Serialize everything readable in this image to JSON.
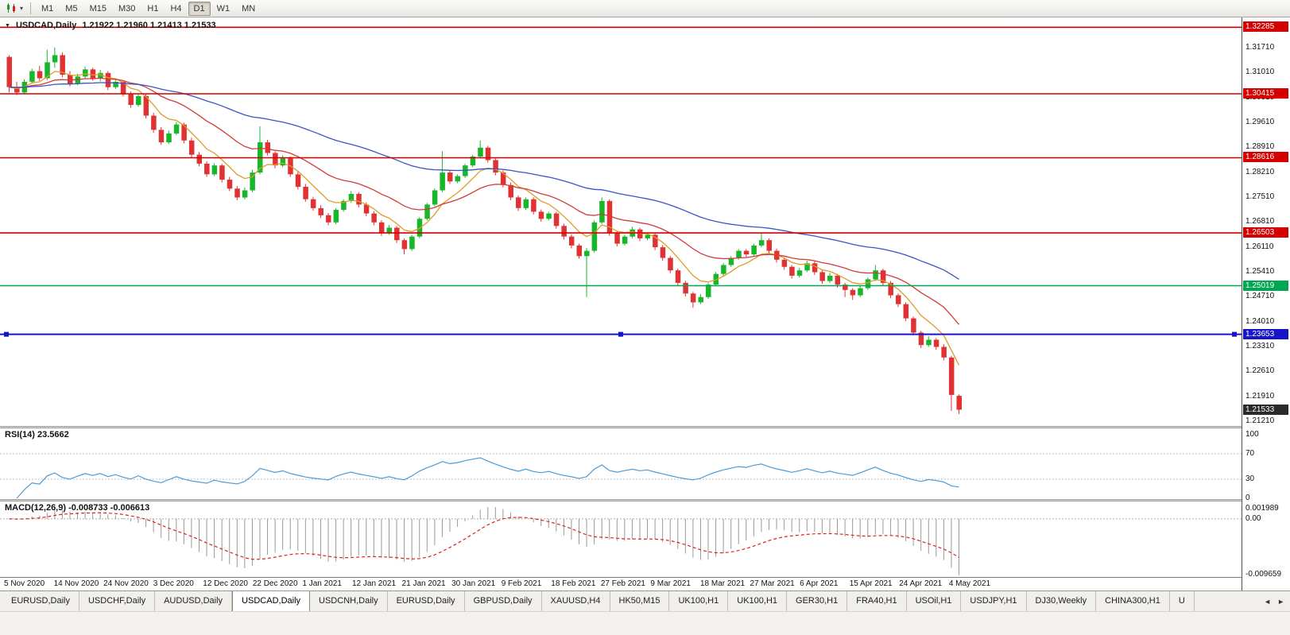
{
  "toolbar": {
    "timeframes": [
      "M1",
      "M5",
      "M15",
      "M30",
      "H1",
      "H4",
      "D1",
      "W1",
      "MN"
    ],
    "active_timeframe": "D1",
    "chart_icon_caret": "▾"
  },
  "chart": {
    "header_symbol": "USDCAD,Daily",
    "header_ohlc": "1.21922 1.21960 1.21413 1.21533",
    "collapse_icon": "▼",
    "price_axis_labels": [
      "1.31710",
      "1.31010",
      "1.30310",
      "1.29610",
      "1.28910",
      "1.28210",
      "1.27510",
      "1.26810",
      "1.26110",
      "1.25410",
      "1.24710",
      "1.24010",
      "1.23310",
      "1.22610",
      "1.21910",
      "1.21210"
    ],
    "level_lines": [
      {
        "price": 1.32285,
        "label": "1.32285",
        "color": "#d40000"
      },
      {
        "price": 1.30415,
        "label": "1.30415",
        "color": "#d40000"
      },
      {
        "price": 1.28616,
        "label": "1.28616",
        "color": "#d40000"
      },
      {
        "price": 1.26503,
        "label": "1.26503",
        "color": "#d40000"
      },
      {
        "price": 1.25019,
        "label": "1.25019",
        "color": "#00a651"
      },
      {
        "price": 1.23653,
        "label": "1.23653",
        "color": "#1616c8",
        "selected": true
      }
    ],
    "current_price": {
      "value": 1.21533,
      "label": "1.21533",
      "color": "#2a2a2a"
    }
  },
  "rsi": {
    "label": "RSI(14) 23.5662",
    "value": 23.5662,
    "period": 14,
    "axis_labels": [
      "100",
      "70",
      "30",
      "0"
    ],
    "level_lines": [
      70,
      30
    ],
    "line_color": "#4f9bd5"
  },
  "macd": {
    "label": "MACD(12,26,9) -0.008733 -0.006613",
    "macd_value": -0.008733,
    "signal_value": -0.006613,
    "axis_labels": [
      "0.001989",
      "0.00",
      "-0.009659"
    ],
    "histogram_color": "#9a9a9a",
    "signal_color": "#e02020"
  },
  "tabs": {
    "active_index": 3,
    "scroll_left_icon": "◄",
    "scroll_right_icon": "►",
    "items": [
      "EURUSD,Daily",
      "USDCHF,Daily",
      "AUDUSD,Daily",
      "USDCAD,Daily",
      "USDCNH,Daily",
      "EURUSD,Daily",
      "GBPUSD,Daily",
      "XAUUSD,H4",
      "HK50,M15",
      "UK100,H1",
      "UK100,H1",
      "GER30,H1",
      "FRA40,H1",
      "USOil,H1",
      "USDJPY,H1",
      "DJ30,Weekly",
      "CHINA300,H1",
      "U"
    ]
  },
  "chart_data": {
    "type": "candlestick",
    "symbol": "USDCAD",
    "timeframe": "Daily",
    "title": "USDCAD,Daily",
    "y_range": [
      1.2105,
      1.3243
    ],
    "colors": {
      "up": "#17b72a",
      "down": "#e03232"
    },
    "x_labels": [
      "5 Nov 2020",
      "14 Nov 2020",
      "24 Nov 2020",
      "3 Dec 2020",
      "12 Dec 2020",
      "22 Dec 2020",
      "1 Jan 2021",
      "12 Jan 2021",
      "21 Jan 2021",
      "30 Jan 2021",
      "9 Feb 2021",
      "18 Feb 2021",
      "27 Feb 2021",
      "9 Mar 2021",
      "18 Mar 2021",
      "27 Mar 2021",
      "6 Apr 2021",
      "15 Apr 2021",
      "24 Apr 2021",
      "4 May 2021"
    ],
    "candles": [
      [
        1.3145,
        1.315,
        1.3045,
        1.306
      ],
      [
        1.306,
        1.3075,
        1.3038,
        1.3045
      ],
      [
        1.3045,
        1.3082,
        1.304,
        1.3075
      ],
      [
        1.3075,
        1.3112,
        1.307,
        1.3105
      ],
      [
        1.3105,
        1.312,
        1.3078,
        1.3085
      ],
      [
        1.3085,
        1.3165,
        1.308,
        1.313
      ],
      [
        1.313,
        1.3172,
        1.3115,
        1.315
      ],
      [
        1.315,
        1.3158,
        1.3088,
        1.3095
      ],
      [
        1.3095,
        1.3105,
        1.3062,
        1.307
      ],
      [
        1.307,
        1.3098,
        1.3065,
        1.309
      ],
      [
        1.309,
        1.3118,
        1.3085,
        1.311
      ],
      [
        1.311,
        1.3115,
        1.3078,
        1.3085
      ],
      [
        1.3085,
        1.3108,
        1.3076,
        1.31
      ],
      [
        1.31,
        1.3105,
        1.3052,
        1.306
      ],
      [
        1.306,
        1.3082,
        1.3055,
        1.3075
      ],
      [
        1.3075,
        1.308,
        1.3034,
        1.304
      ],
      [
        1.304,
        1.3048,
        1.3002,
        1.301
      ],
      [
        1.301,
        1.3042,
        1.3005,
        1.3035
      ],
      [
        1.3035,
        1.304,
        1.2972,
        1.298
      ],
      [
        1.298,
        1.2988,
        1.2932,
        1.294
      ],
      [
        1.294,
        1.2948,
        1.2898,
        1.2905
      ],
      [
        1.2905,
        1.2938,
        1.29,
        1.293
      ],
      [
        1.293,
        1.2962,
        1.2925,
        1.2955
      ],
      [
        1.2955,
        1.296,
        1.2902,
        1.291
      ],
      [
        1.291,
        1.2918,
        1.2862,
        1.287
      ],
      [
        1.287,
        1.2878,
        1.2838,
        1.2845
      ],
      [
        1.2845,
        1.2852,
        1.2808,
        1.2815
      ],
      [
        1.2815,
        1.2846,
        1.281,
        1.284
      ],
      [
        1.284,
        1.2845,
        1.2792,
        1.28
      ],
      [
        1.28,
        1.2808,
        1.2768,
        1.2775
      ],
      [
        1.2775,
        1.2782,
        1.2742,
        1.275
      ],
      [
        1.275,
        1.2778,
        1.2745,
        1.277
      ],
      [
        1.277,
        1.2828,
        1.2765,
        1.282
      ],
      [
        1.282,
        1.295,
        1.2815,
        1.2905
      ],
      [
        1.2905,
        1.2912,
        1.2868,
        1.2875
      ],
      [
        1.2875,
        1.288,
        1.2832,
        1.284
      ],
      [
        1.284,
        1.2868,
        1.2835,
        1.286
      ],
      [
        1.286,
        1.2865,
        1.2808,
        1.2815
      ],
      [
        1.2815,
        1.2822,
        1.2772,
        1.278
      ],
      [
        1.278,
        1.2788,
        1.2738,
        1.2745
      ],
      [
        1.2745,
        1.2752,
        1.2713,
        1.272
      ],
      [
        1.272,
        1.2728,
        1.2692,
        1.27
      ],
      [
        1.27,
        1.2706,
        1.2672,
        1.268
      ],
      [
        1.268,
        1.272,
        1.2675,
        1.2715
      ],
      [
        1.2715,
        1.2745,
        1.271,
        1.274
      ],
      [
        1.274,
        1.2768,
        1.2735,
        1.276
      ],
      [
        1.276,
        1.2765,
        1.2722,
        1.273
      ],
      [
        1.273,
        1.2736,
        1.2697,
        1.2705
      ],
      [
        1.2705,
        1.2712,
        1.2672,
        1.268
      ],
      [
        1.268,
        1.2686,
        1.2642,
        1.265
      ],
      [
        1.265,
        1.2672,
        1.2645,
        1.2665
      ],
      [
        1.2665,
        1.267,
        1.2622,
        1.263
      ],
      [
        1.263,
        1.2635,
        1.259,
        1.2605
      ],
      [
        1.2605,
        1.2645,
        1.26,
        1.264
      ],
      [
        1.264,
        1.2695,
        1.2635,
        1.269
      ],
      [
        1.269,
        1.2735,
        1.2685,
        1.273
      ],
      [
        1.273,
        1.2775,
        1.2725,
        1.277
      ],
      [
        1.277,
        1.288,
        1.2765,
        1.282
      ],
      [
        1.282,
        1.2825,
        1.2788,
        1.2795
      ],
      [
        1.2795,
        1.2815,
        1.279,
        1.281
      ],
      [
        1.281,
        1.2845,
        1.2805,
        1.284
      ],
      [
        1.284,
        1.287,
        1.2835,
        1.2865
      ],
      [
        1.2865,
        1.291,
        1.286,
        1.289
      ],
      [
        1.289,
        1.2895,
        1.2848,
        1.2855
      ],
      [
        1.2855,
        1.286,
        1.2812,
        1.282
      ],
      [
        1.282,
        1.2826,
        1.2778,
        1.2785
      ],
      [
        1.2785,
        1.2792,
        1.2742,
        1.275
      ],
      [
        1.275,
        1.2756,
        1.2712,
        1.272
      ],
      [
        1.272,
        1.275,
        1.2715,
        1.2745
      ],
      [
        1.2745,
        1.275,
        1.2702,
        1.271
      ],
      [
        1.271,
        1.2716,
        1.2682,
        1.269
      ],
      [
        1.269,
        1.271,
        1.2685,
        1.2705
      ],
      [
        1.2705,
        1.271,
        1.2662,
        1.267
      ],
      [
        1.267,
        1.2676,
        1.2632,
        1.264
      ],
      [
        1.264,
        1.2646,
        1.2607,
        1.2615
      ],
      [
        1.2615,
        1.262,
        1.2578,
        1.2585
      ],
      [
        1.2585,
        1.2608,
        1.247,
        1.26
      ],
      [
        1.26,
        1.2685,
        1.2595,
        1.268
      ],
      [
        1.268,
        1.275,
        1.2675,
        1.274
      ],
      [
        1.274,
        1.2745,
        1.2642,
        1.265
      ],
      [
        1.265,
        1.2656,
        1.2612,
        1.262
      ],
      [
        1.262,
        1.2645,
        1.2615,
        1.264
      ],
      [
        1.264,
        1.2668,
        1.2635,
        1.266
      ],
      [
        1.266,
        1.2665,
        1.2627,
        1.2635
      ],
      [
        1.2635,
        1.2652,
        1.263,
        1.2645
      ],
      [
        1.2645,
        1.265,
        1.2602,
        1.261
      ],
      [
        1.261,
        1.2616,
        1.2572,
        1.258
      ],
      [
        1.258,
        1.2586,
        1.2537,
        1.2545
      ],
      [
        1.2545,
        1.255,
        1.2502,
        1.251
      ],
      [
        1.251,
        1.2516,
        1.2472,
        1.248
      ],
      [
        1.248,
        1.2485,
        1.244,
        1.2455
      ],
      [
        1.2455,
        1.2478,
        1.245,
        1.247
      ],
      [
        1.247,
        1.251,
        1.2465,
        1.2505
      ],
      [
        1.2505,
        1.254,
        1.25,
        1.2535
      ],
      [
        1.2535,
        1.2565,
        1.253,
        1.256
      ],
      [
        1.256,
        1.2585,
        1.2555,
        1.258
      ],
      [
        1.258,
        1.2605,
        1.2575,
        1.26
      ],
      [
        1.26,
        1.2605,
        1.2582,
        1.259
      ],
      [
        1.259,
        1.262,
        1.2585,
        1.2615
      ],
      [
        1.2615,
        1.265,
        1.261,
        1.263
      ],
      [
        1.263,
        1.2635,
        1.2592,
        1.26
      ],
      [
        1.26,
        1.2606,
        1.2567,
        1.2575
      ],
      [
        1.2575,
        1.258,
        1.2547,
        1.2555
      ],
      [
        1.2555,
        1.256,
        1.2522,
        1.253
      ],
      [
        1.253,
        1.2552,
        1.2525,
        1.2545
      ],
      [
        1.2545,
        1.2572,
        1.254,
        1.2565
      ],
      [
        1.2565,
        1.257,
        1.2532,
        1.254
      ],
      [
        1.254,
        1.2545,
        1.2507,
        1.2515
      ],
      [
        1.2515,
        1.2538,
        1.251,
        1.253
      ],
      [
        1.253,
        1.2535,
        1.2497,
        1.2505
      ],
      [
        1.2505,
        1.251,
        1.247,
        1.249
      ],
      [
        1.249,
        1.2495,
        1.2462,
        1.2475
      ],
      [
        1.2475,
        1.2502,
        1.247,
        1.2495
      ],
      [
        1.2495,
        1.2525,
        1.249,
        1.252
      ],
      [
        1.252,
        1.256,
        1.2515,
        1.2545
      ],
      [
        1.2545,
        1.255,
        1.2502,
        1.251
      ],
      [
        1.251,
        1.2515,
        1.2467,
        1.2475
      ],
      [
        1.2475,
        1.248,
        1.2442,
        1.245
      ],
      [
        1.245,
        1.2455,
        1.2402,
        1.241
      ],
      [
        1.241,
        1.2415,
        1.2362,
        1.237
      ],
      [
        1.237,
        1.2375,
        1.2327,
        1.2335
      ],
      [
        1.2335,
        1.236,
        1.233,
        1.235
      ],
      [
        1.235,
        1.2355,
        1.2322,
        1.233
      ],
      [
        1.233,
        1.2338,
        1.2292,
        1.23
      ],
      [
        1.23,
        1.2305,
        1.215,
        1.2195
      ],
      [
        1.21922,
        1.2196,
        1.21413,
        1.21533
      ]
    ],
    "overlays": [
      {
        "name": "ma-fast",
        "type": "ema",
        "period": 7,
        "color": "#e09b28"
      },
      {
        "name": "ma-medium",
        "type": "ema",
        "period": 20,
        "color": "#d43a3a"
      },
      {
        "name": "ma-slow",
        "type": "ema",
        "period": 55,
        "color": "#3b54c4"
      }
    ],
    "sub_indicators": [
      {
        "name": "RSI",
        "period": 14,
        "last_value": 23.5662
      },
      {
        "name": "MACD",
        "fast": 12,
        "slow": 26,
        "signal": 9,
        "last_values": [
          -0.008733,
          -0.006613
        ]
      }
    ]
  }
}
